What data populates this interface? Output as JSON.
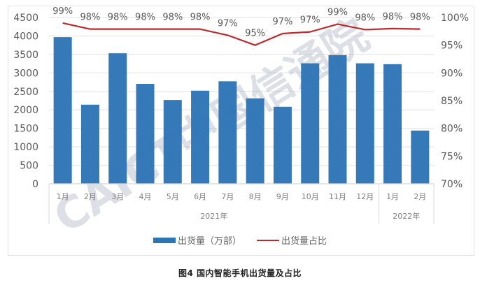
{
  "chart_data": {
    "type": "bar+line",
    "title": "图4  国内智能手机出货量及占比",
    "categories": [
      "1月",
      "2月",
      "3月",
      "4月",
      "5月",
      "6月",
      "7月",
      "8月",
      "9月",
      "10月",
      "11月",
      "12月",
      "1月",
      "2月"
    ],
    "category_groups": [
      {
        "label": "2021年",
        "start": 0,
        "end": 11
      },
      {
        "label": "2022年",
        "start": 12,
        "end": 13
      }
    ],
    "series": [
      {
        "name": "出货量（万部）",
        "type": "bar",
        "axis": "left",
        "color": "#2e75b6",
        "values": [
          3968,
          2141,
          3532,
          2704,
          2267,
          2519,
          2773,
          2312,
          2084,
          3260,
          3481,
          3260,
          3236,
          1440
        ]
      },
      {
        "name": "出货量占比",
        "type": "line",
        "axis": "right",
        "color": "#c0282d",
        "values": [
          99.0,
          97.9,
          97.9,
          97.9,
          97.9,
          97.9,
          96.8,
          95.0,
          97.1,
          97.4,
          98.8,
          97.8,
          98.0,
          97.9
        ],
        "data_labels": [
          "99%",
          "98%",
          "98%",
          "98%",
          "98%",
          "98%",
          "97%",
          "95%",
          "97%",
          "97%",
          "99%",
          "98%",
          "98%",
          "98%"
        ]
      }
    ],
    "left_axis": {
      "min": 0,
      "max": 4500,
      "step": 500,
      "ticks": [
        "0",
        "500",
        "1000",
        "1500",
        "2000",
        "2500",
        "3000",
        "3500",
        "4000",
        "4500"
      ]
    },
    "right_axis": {
      "min": 70,
      "max": 100,
      "step": 5,
      "ticks": [
        "70%",
        "75%",
        "80%",
        "85%",
        "90%",
        "95%",
        "100%"
      ]
    },
    "grid": true,
    "legend_position": "bottom",
    "watermark": "CAICT中国信通院"
  },
  "legend": {
    "bar_label": "出货量（万部）",
    "line_label": "出货量占比"
  },
  "caption": "图4  国内智能手机出货量及占比"
}
